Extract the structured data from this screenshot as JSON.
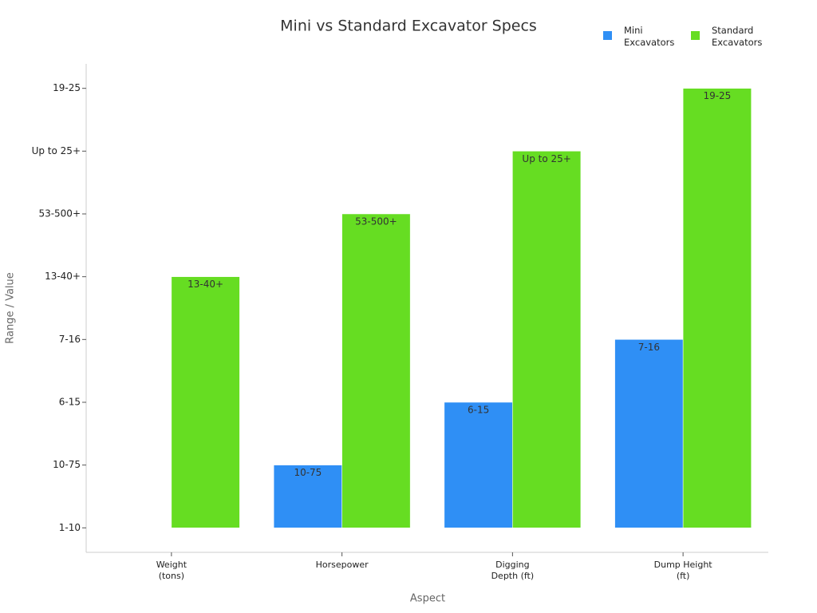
{
  "chart_data": {
    "type": "bar",
    "title": "Mini vs Standard Excavator Specs",
    "x_label": "Aspect",
    "y_label": "Range / Value",
    "categories": [
      "Weight (tons)",
      "Horsepower",
      "Digging Depth (ft)",
      "Dump Height (ft)"
    ],
    "series": [
      {
        "name": "Mini Excavators",
        "color": "#2f8ff5",
        "values": [
          0,
          1,
          2,
          3
        ],
        "value_labels": [
          null,
          "10-75",
          "6-15",
          "7-16"
        ]
      },
      {
        "name": "Standard Excavators",
        "color": "#66dd22",
        "values": [
          4,
          5,
          6,
          7
        ],
        "value_labels": [
          "13-40+",
          "53-500+",
          "Up to 25+",
          "19-25"
        ]
      }
    ],
    "ylim": [
      -0.39,
      7.39
    ],
    "yticks": [
      {
        "value": 0,
        "label": "1-10"
      },
      {
        "value": 1,
        "label": "10-75"
      },
      {
        "value": 2,
        "label": "6-15"
      },
      {
        "value": 3,
        "label": "7-16"
      },
      {
        "value": 4,
        "label": "13-40+"
      },
      {
        "value": 5,
        "label": "53-500+"
      },
      {
        "value": 6,
        "label": "Up to 25+"
      },
      {
        "value": 7,
        "label": "19-25"
      }
    ],
    "legend": "top-right"
  }
}
